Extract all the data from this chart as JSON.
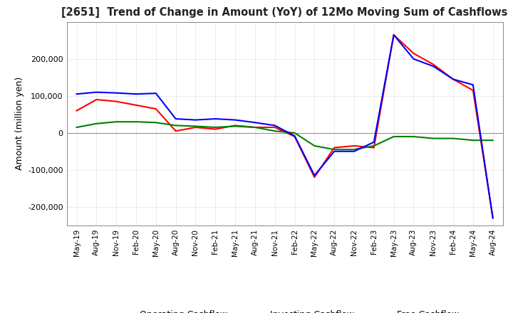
{
  "title": "[2651]  Trend of Change in Amount (YoY) of 12Mo Moving Sum of Cashflows",
  "ylabel": "Amount (million yen)",
  "ylim": [
    -250000,
    300000
  ],
  "yticks": [
    -200000,
    -100000,
    0,
    100000,
    200000
  ],
  "background_color": "#ffffff",
  "grid_color": "#bbbbbb",
  "x_labels": [
    "May-19",
    "Aug-19",
    "Nov-19",
    "Feb-20",
    "May-20",
    "Aug-20",
    "Nov-20",
    "Feb-21",
    "May-21",
    "Aug-21",
    "Nov-21",
    "Feb-22",
    "May-22",
    "Aug-22",
    "Nov-22",
    "Feb-23",
    "May-23",
    "Aug-23",
    "Nov-23",
    "Feb-24",
    "May-24",
    "Aug-24"
  ],
  "operating": [
    60000,
    90000,
    85000,
    75000,
    65000,
    5000,
    15000,
    10000,
    20000,
    15000,
    15000,
    -10000,
    -120000,
    -40000,
    -35000,
    -40000,
    265000,
    215000,
    185000,
    145000,
    115000,
    -230000
  ],
  "investing": [
    15000,
    25000,
    30000,
    30000,
    28000,
    20000,
    18000,
    15000,
    18000,
    15000,
    5000,
    0,
    -35000,
    -45000,
    -45000,
    -35000,
    -10000,
    -10000,
    -15000,
    -15000,
    -20000,
    -20000
  ],
  "free": [
    105000,
    110000,
    108000,
    105000,
    107000,
    38000,
    35000,
    38000,
    35000,
    28000,
    20000,
    -8000,
    -115000,
    -50000,
    -50000,
    -25000,
    265000,
    200000,
    180000,
    145000,
    130000,
    -230000
  ],
  "operating_color": "#ff0000",
  "investing_color": "#008000",
  "free_color": "#0000ff",
  "line_width": 1.5
}
